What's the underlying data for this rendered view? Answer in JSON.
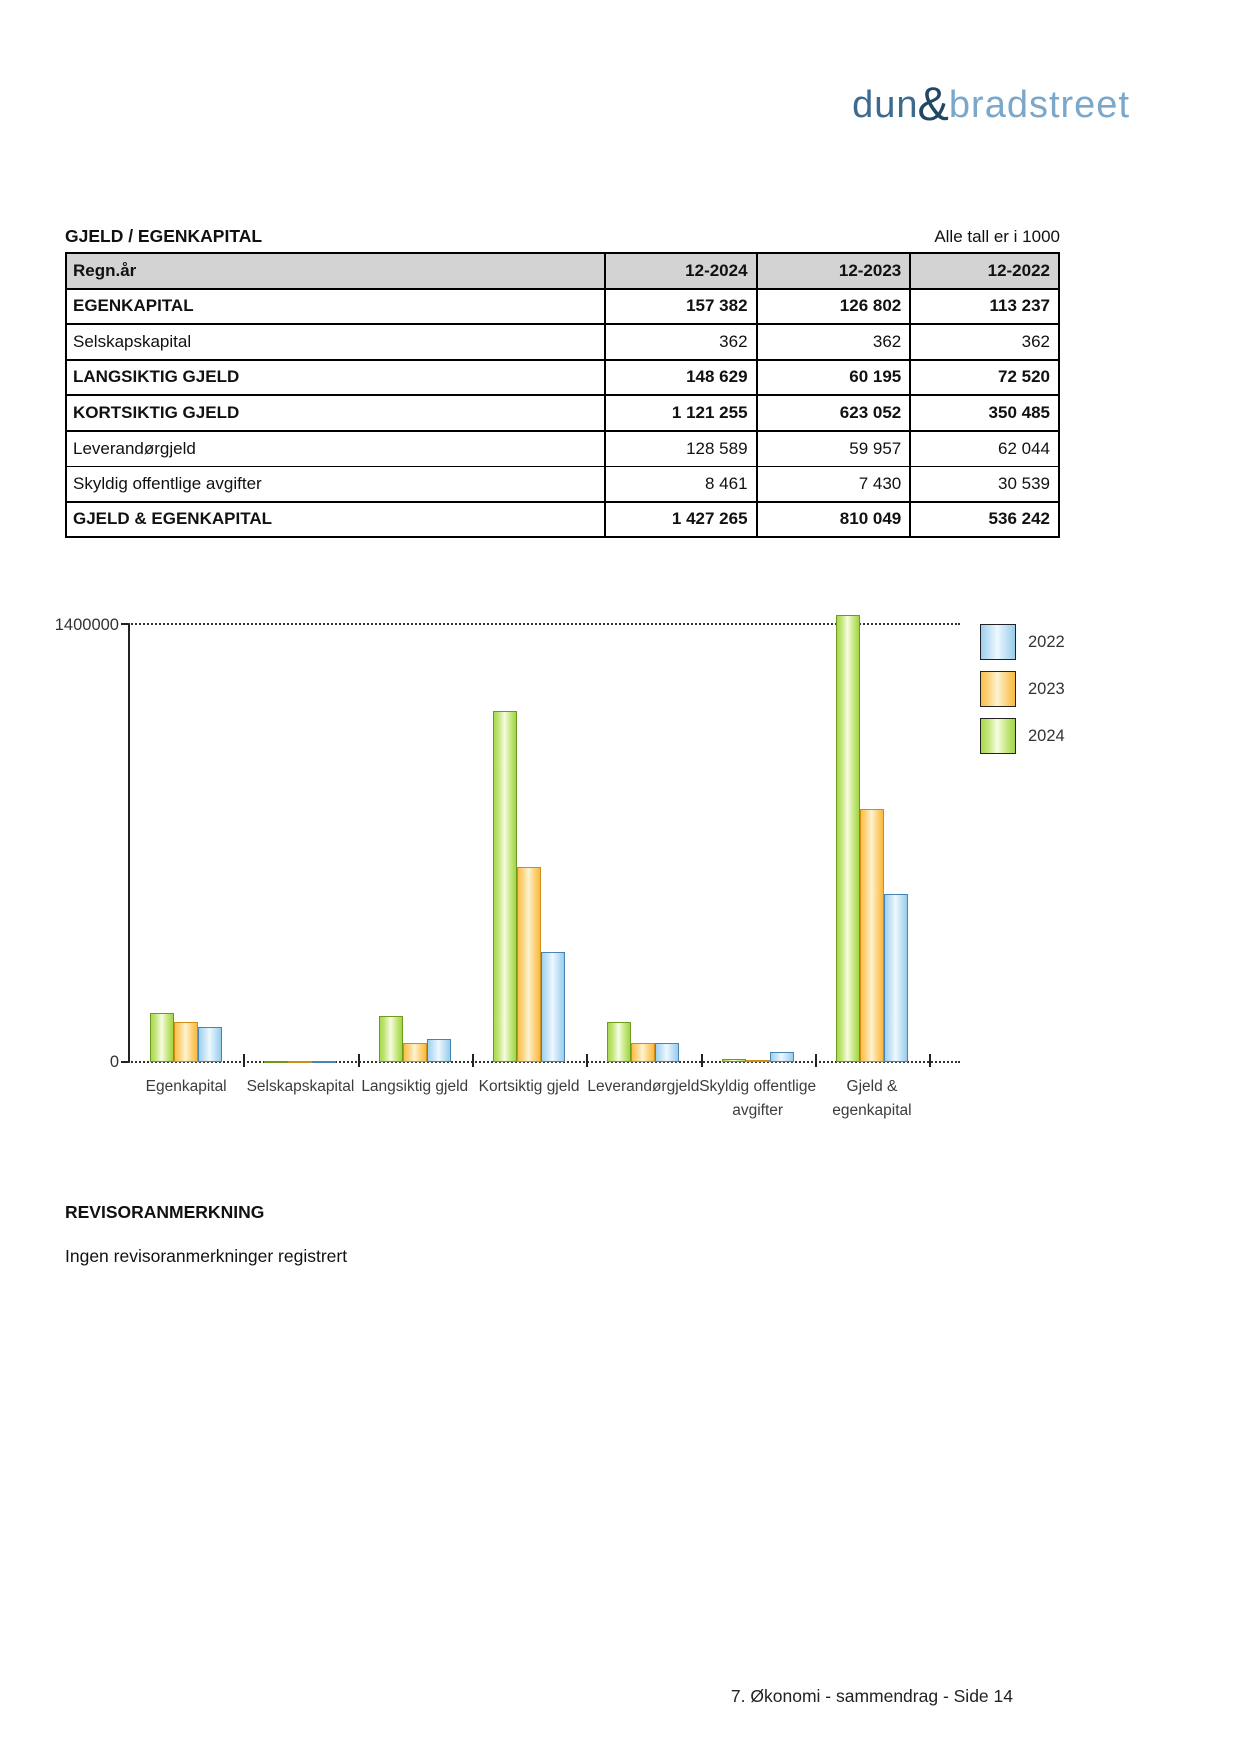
{
  "logo": {
    "part1": "dun",
    "amp": "&",
    "part2": "bradstreet"
  },
  "section": {
    "title": "GJELD / EGENKAPITAL",
    "note": "Alle tall er i 1000"
  },
  "table": {
    "header": {
      "label": "Regn.år",
      "cols": [
        "12-2024",
        "12-2023",
        "12-2022"
      ]
    },
    "rows": [
      {
        "label": "EGENKAPITAL",
        "bold": true,
        "values": [
          "157 382",
          "126 802",
          "113 237"
        ]
      },
      {
        "label": "Selskapskapital",
        "bold": false,
        "values": [
          "362",
          "362",
          "362"
        ]
      },
      {
        "label": "LANGSIKTIG GJELD",
        "bold": true,
        "values": [
          "148 629",
          "60 195",
          "72 520"
        ]
      },
      {
        "label": "KORTSIKTIG GJELD",
        "bold": true,
        "values": [
          "1 121 255",
          "623 052",
          "350 485"
        ]
      },
      {
        "label": "Leverandørgjeld",
        "bold": false,
        "values": [
          "128 589",
          "59 957",
          "62 044"
        ]
      },
      {
        "label": "Skyldig offentlige avgifter",
        "bold": false,
        "values": [
          "8 461",
          "7 430",
          "30 539"
        ]
      },
      {
        "label": "GJELD & EGENKAPITAL",
        "bold": true,
        "values": [
          "1 427 265",
          "810 049",
          "536 242"
        ]
      }
    ]
  },
  "chart_data": {
    "type": "bar",
    "title": "",
    "xlabel": "",
    "ylabel": "",
    "ylim": [
      0,
      1400000
    ],
    "ytick_top_label": "1400000",
    "ytick_bottom_label": "0",
    "grid": "top-gridline-dotted",
    "legend_position": "top-right",
    "categories": [
      "Egenkapital",
      "Selskapskapital",
      "Langsiktig gjeld",
      "Kortsiktig gjeld",
      "Leverandørgjeld",
      "Skyldig offentlige\navgifter",
      "Gjeld &\negenkapital"
    ],
    "series": [
      {
        "name": "2024",
        "color": "green",
        "values": [
          157382,
          362,
          148629,
          1121255,
          128589,
          8461,
          1427265
        ]
      },
      {
        "name": "2023",
        "color": "orange",
        "values": [
          126802,
          362,
          60195,
          623052,
          59957,
          7430,
          810049
        ]
      },
      {
        "name": "2022",
        "color": "blue",
        "values": [
          113237,
          362,
          72520,
          350485,
          62044,
          30539,
          536242
        ]
      }
    ],
    "legend": [
      {
        "label": "2022",
        "color": "blue"
      },
      {
        "label": "2023",
        "color": "orange"
      },
      {
        "label": "2024",
        "color": "green"
      }
    ]
  },
  "colors": {
    "green_border": "#6f9a1e",
    "green_fill": "#a9d84f",
    "orange_border": "#cf8d15",
    "orange_fill": "#fbbf4a",
    "blue_border": "#4784b3",
    "blue_fill": "#9ed0ee",
    "header_bg": "#d3d3d3",
    "logo_dun": "#3c6b8e",
    "logo_amp": "#214763",
    "logo_bradstreet": "#7aa7ca"
  },
  "revisor": {
    "heading": "REVISORANMERKNING",
    "body": "Ingen revisoranmerkninger registrert"
  },
  "footer": {
    "text": "7. Økonomi - sammendrag - Side 14"
  }
}
